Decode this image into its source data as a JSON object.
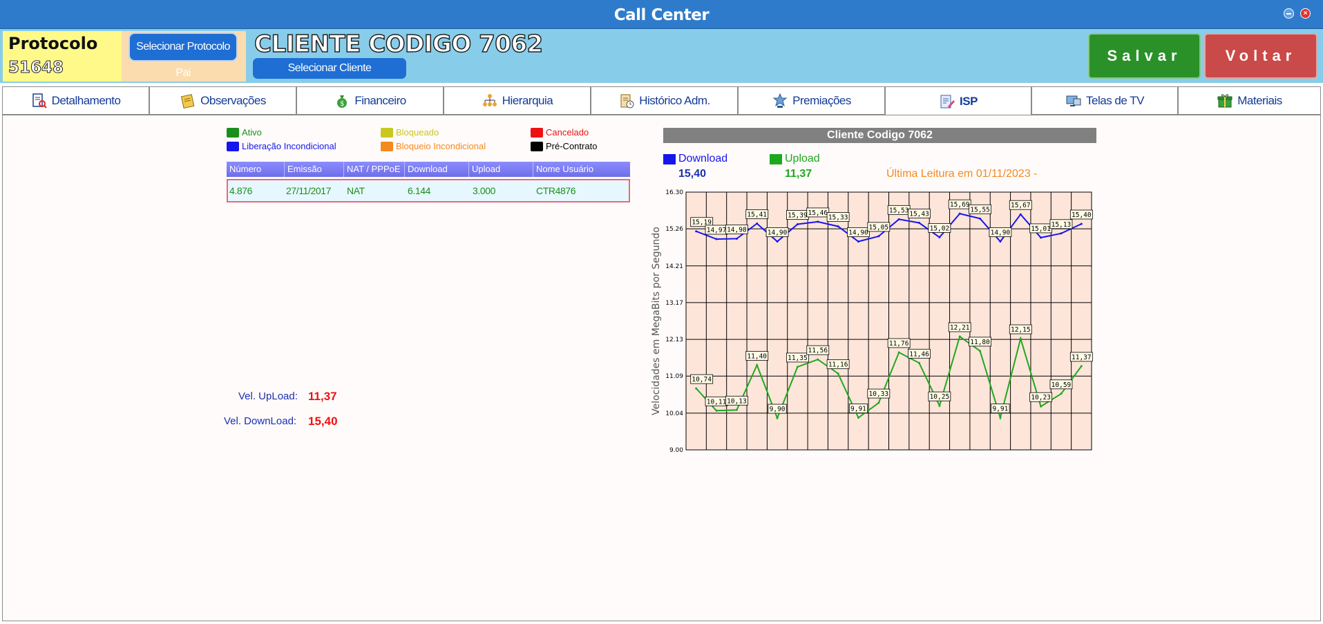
{
  "window": {
    "title": "Call Center"
  },
  "header": {
    "protocolo_label": "Protocolo",
    "protocolo_num": "51648",
    "pai_button": "Selecionar Protocolo Pai",
    "cliente_title": "CLIENTE CODIGO 7062",
    "sel_cliente_button": "Selecionar Cliente",
    "salvar": "Salvar",
    "voltar": "Voltar"
  },
  "tabs": [
    {
      "label": "Detalhamento",
      "icon": "search-doc-icon"
    },
    {
      "label": "Observações",
      "icon": "notes-icon"
    },
    {
      "label": "Financeiro",
      "icon": "money-bag-icon"
    },
    {
      "label": "Hierarquia",
      "icon": "hierarchy-icon"
    },
    {
      "label": "Histórico Adm.",
      "icon": "history-icon"
    },
    {
      "label": "Premiações",
      "icon": "award-icon"
    },
    {
      "label": "ISP",
      "icon": "edit-doc-icon",
      "active": true
    },
    {
      "label": "Telas de TV",
      "icon": "tv-icon"
    },
    {
      "label": "Materiais",
      "icon": "gift-icon"
    }
  ],
  "legend": [
    {
      "label": "Ativo",
      "color": "#1a8f1a"
    },
    {
      "label": "Bloqueado",
      "color": "#c8c81e"
    },
    {
      "label": "Cancelado",
      "color": "#ee1111"
    },
    {
      "label": "Liberação Incondicional",
      "color": "#1515ee"
    },
    {
      "label": "Bloqueio Incondicional",
      "color": "#f38a1e"
    },
    {
      "label": "Pré-Contrato",
      "color": "#000000"
    }
  ],
  "grid": {
    "columns": [
      "Número",
      "Emissão",
      "NAT / PPPoE",
      "Download",
      "Upload",
      "Nome Usuário"
    ],
    "rows": [
      [
        "4.876",
        "27/11/2017",
        "NAT",
        "6.144",
        "3.000",
        "CTR4876"
      ]
    ]
  },
  "velocidades": {
    "upload_label": "Vel. UpLoad:",
    "upload_value": "11,37",
    "download_label": "Vel. DownLoad:",
    "download_value": "15,40"
  },
  "chart_header": {
    "title": "Cliente Codigo 7062",
    "download_label": "Download",
    "download_value": "15,40",
    "upload_label": "Upload",
    "upload_value": "11,37",
    "ultima_leitura": "Última Leitura em 01/11/2023 -"
  },
  "chart_data": {
    "type": "line",
    "ylabel": "Velocidades em MegaBits por Segundo",
    "ylim": [
      9.0,
      16.3
    ],
    "yticks": [
      "16.30",
      "15.26",
      "14.21",
      "13.17",
      "12.13",
      "11.09",
      "10.04",
      "9.00"
    ],
    "ytick_values": [
      16.3,
      15.26,
      14.21,
      13.17,
      12.13,
      11.09,
      10.04,
      9.0
    ],
    "background": "#fde5da",
    "grid": true,
    "series": [
      {
        "name": "Download",
        "color": "#1515ee",
        "values": [
          15.19,
          14.97,
          14.98,
          15.41,
          14.9,
          15.39,
          15.46,
          15.33,
          14.9,
          15.05,
          15.53,
          15.43,
          15.02,
          15.69,
          15.55,
          14.9,
          15.67,
          15.01,
          15.13,
          15.4
        ],
        "labels": [
          "15,19",
          "14,97",
          "14,98",
          "15,41",
          "14,90",
          "15,39",
          "15,46",
          "15,33",
          "14,90",
          "15,05",
          "15,53",
          "15,43",
          "15,02",
          "15,69",
          "15,55",
          "14,90",
          "15,67",
          "15,01",
          "15,13",
          "15,40"
        ]
      },
      {
        "name": "Upload",
        "color": "#1ea81e",
        "values": [
          10.74,
          10.11,
          10.13,
          11.4,
          9.9,
          11.35,
          11.56,
          11.16,
          9.91,
          10.33,
          11.76,
          11.46,
          10.25,
          12.21,
          11.8,
          9.91,
          12.15,
          10.23,
          10.59,
          11.37
        ],
        "labels": [
          "10,74",
          "10,11",
          "10,13",
          "11,40",
          "9,90",
          "11,35",
          "11,56",
          "11,16",
          "9,91",
          "10,33",
          "11,76",
          "11,46",
          "10,25",
          "12,21",
          "11,80",
          "9,91",
          "12,15",
          "10,23",
          "10,59",
          "11,37"
        ]
      }
    ]
  }
}
